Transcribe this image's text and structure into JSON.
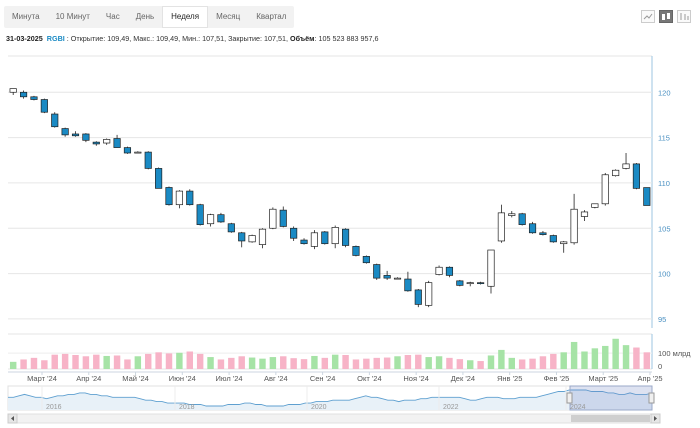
{
  "tabs": [
    {
      "label": "Минута",
      "active": false
    },
    {
      "label": "10 Минут",
      "active": false
    },
    {
      "label": "Час",
      "active": false
    },
    {
      "label": "День",
      "active": false
    },
    {
      "label": "Неделя",
      "active": true
    },
    {
      "label": "Месяц",
      "active": false
    },
    {
      "label": "Квартал",
      "active": false
    }
  ],
  "tools": [
    {
      "name": "line-chart-icon",
      "active": false
    },
    {
      "name": "candlestick-icon",
      "active": true
    },
    {
      "name": "bar-chart-icon",
      "active": false
    }
  ],
  "info": {
    "date": "31-03-2025",
    "ticker": "RGBI",
    "open_label": "Открытие:",
    "open": "109,49",
    "high_label": "Макс.:",
    "high": "109,49",
    "low_label": "Мин.:",
    "low": "107,51",
    "close_label": "Закрытие:",
    "close": "107,51",
    "volume_label": "Объём",
    "volume": "105 523 883 957,6"
  },
  "colors": {
    "up": "#ffffff",
    "down": "#1a8ac4",
    "vol_up": "#a6e3a6",
    "vol_down": "#f7b3c7",
    "navigator": "#5fa0d0"
  },
  "chart_data": {
    "type": "candlestick",
    "ylim": [
      94,
      124
    ],
    "yticks": [
      95,
      100,
      105,
      110,
      115,
      120
    ],
    "volume_tick_label": "100 млрд",
    "volume_zero_label": "0",
    "xticks": [
      "Март '24",
      "Апр '24",
      "Май '24",
      "Июн '24",
      "Июл '24",
      "Авг '24",
      "Сен '24",
      "Окт '24",
      "Ноя '24",
      "Дек '24",
      "Янв '25",
      "Фев '25",
      "Март '25",
      "Апр '25"
    ],
    "navigator_ticks": [
      "2016",
      "2018",
      "2020",
      "2022",
      "2024"
    ],
    "candles": [
      {
        "o": 120.0,
        "h": 120.4,
        "l": 119.7,
        "c": 120.4
      },
      {
        "o": 120.0,
        "h": 120.2,
        "l": 119.3,
        "c": 119.5
      },
      {
        "o": 119.5,
        "h": 119.6,
        "l": 119.1,
        "c": 119.2
      },
      {
        "o": 119.2,
        "h": 119.3,
        "l": 117.7,
        "c": 117.8
      },
      {
        "o": 117.6,
        "h": 117.8,
        "l": 116.1,
        "c": 116.2
      },
      {
        "o": 116.0,
        "h": 116.1,
        "l": 115.1,
        "c": 115.3
      },
      {
        "o": 115.4,
        "h": 115.7,
        "l": 115.1,
        "c": 115.2
      },
      {
        "o": 115.4,
        "h": 115.5,
        "l": 114.5,
        "c": 114.7
      },
      {
        "o": 114.5,
        "h": 114.6,
        "l": 114.1,
        "c": 114.3
      },
      {
        "o": 114.4,
        "h": 114.9,
        "l": 114.2,
        "c": 114.8
      },
      {
        "o": 114.9,
        "h": 115.3,
        "l": 113.9,
        "c": 113.9
      },
      {
        "o": 113.9,
        "h": 114.0,
        "l": 113.2,
        "c": 113.3
      },
      {
        "o": 113.4,
        "h": 113.5,
        "l": 113.3,
        "c": 113.4
      },
      {
        "o": 113.4,
        "h": 113.5,
        "l": 111.5,
        "c": 111.6
      },
      {
        "o": 111.6,
        "h": 111.7,
        "l": 109.4,
        "c": 109.4
      },
      {
        "o": 109.5,
        "h": 109.6,
        "l": 107.5,
        "c": 107.6
      },
      {
        "o": 107.6,
        "h": 109.2,
        "l": 107.2,
        "c": 109.1
      },
      {
        "o": 109.1,
        "h": 109.3,
        "l": 107.5,
        "c": 107.6
      },
      {
        "o": 107.6,
        "h": 107.7,
        "l": 105.3,
        "c": 105.4
      },
      {
        "o": 105.5,
        "h": 106.6,
        "l": 105.2,
        "c": 106.5
      },
      {
        "o": 106.5,
        "h": 106.7,
        "l": 105.6,
        "c": 105.7
      },
      {
        "o": 105.5,
        "h": 105.6,
        "l": 104.5,
        "c": 104.6
      },
      {
        "o": 104.5,
        "h": 104.6,
        "l": 102.9,
        "c": 103.6
      },
      {
        "o": 103.5,
        "h": 104.3,
        "l": 103.4,
        "c": 104.2
      },
      {
        "o": 103.2,
        "h": 105.0,
        "l": 102.8,
        "c": 104.9
      },
      {
        "o": 105.0,
        "h": 107.3,
        "l": 104.9,
        "c": 107.1
      },
      {
        "o": 107.0,
        "h": 107.4,
        "l": 105.1,
        "c": 105.2
      },
      {
        "o": 105.0,
        "h": 105.2,
        "l": 103.6,
        "c": 103.9
      },
      {
        "o": 103.7,
        "h": 103.9,
        "l": 103.2,
        "c": 103.3
      },
      {
        "o": 103.0,
        "h": 104.8,
        "l": 102.7,
        "c": 104.5
      },
      {
        "o": 104.6,
        "h": 104.7,
        "l": 103.2,
        "c": 103.3
      },
      {
        "o": 103.3,
        "h": 105.3,
        "l": 102.8,
        "c": 105.1
      },
      {
        "o": 104.9,
        "h": 105.0,
        "l": 102.9,
        "c": 103.1
      },
      {
        "o": 103.0,
        "h": 103.1,
        "l": 101.9,
        "c": 102.0
      },
      {
        "o": 101.9,
        "h": 102.0,
        "l": 101.1,
        "c": 101.2
      },
      {
        "o": 101.0,
        "h": 101.1,
        "l": 99.3,
        "c": 99.5
      },
      {
        "o": 99.8,
        "h": 100.3,
        "l": 99.3,
        "c": 99.5
      },
      {
        "o": 99.5,
        "h": 99.6,
        "l": 99.4,
        "c": 99.5
      },
      {
        "o": 99.4,
        "h": 100.2,
        "l": 98.0,
        "c": 98.1
      },
      {
        "o": 98.2,
        "h": 98.3,
        "l": 96.3,
        "c": 96.6
      },
      {
        "o": 96.5,
        "h": 99.2,
        "l": 96.3,
        "c": 99.0
      },
      {
        "o": 99.9,
        "h": 100.9,
        "l": 99.8,
        "c": 100.7
      },
      {
        "o": 100.7,
        "h": 100.8,
        "l": 99.6,
        "c": 99.8
      },
      {
        "o": 99.2,
        "h": 99.3,
        "l": 98.6,
        "c": 98.7
      },
      {
        "o": 98.9,
        "h": 99.1,
        "l": 98.6,
        "c": 99.0
      },
      {
        "o": 99.0,
        "h": 99.1,
        "l": 98.8,
        "c": 98.9
      },
      {
        "o": 98.6,
        "h": 102.6,
        "l": 97.8,
        "c": 102.6
      },
      {
        "o": 103.6,
        "h": 107.6,
        "l": 103.4,
        "c": 106.7
      },
      {
        "o": 106.4,
        "h": 106.9,
        "l": 106.2,
        "c": 106.6
      },
      {
        "o": 106.6,
        "h": 106.7,
        "l": 105.3,
        "c": 105.4
      },
      {
        "o": 105.5,
        "h": 105.7,
        "l": 104.4,
        "c": 104.5
      },
      {
        "o": 104.5,
        "h": 104.7,
        "l": 104.2,
        "c": 104.3
      },
      {
        "o": 104.2,
        "h": 104.3,
        "l": 103.4,
        "c": 103.5
      },
      {
        "o": 103.3,
        "h": 103.6,
        "l": 102.3,
        "c": 103.5
      },
      {
        "o": 103.4,
        "h": 108.8,
        "l": 103.2,
        "c": 107.1
      },
      {
        "o": 106.3,
        "h": 107.0,
        "l": 105.8,
        "c": 106.8
      },
      {
        "o": 107.3,
        "h": 107.6,
        "l": 107.2,
        "c": 107.7
      },
      {
        "o": 107.7,
        "h": 111.1,
        "l": 107.5,
        "c": 110.9
      },
      {
        "o": 110.8,
        "h": 111.5,
        "l": 110.7,
        "c": 111.4
      },
      {
        "o": 111.6,
        "h": 113.3,
        "l": 111.5,
        "c": 112.1
      },
      {
        "o": 112.1,
        "h": 112.2,
        "l": 109.3,
        "c": 109.4
      },
      {
        "o": 109.49,
        "h": 109.49,
        "l": 107.51,
        "c": 107.51
      }
    ],
    "volumes": [
      45,
      60,
      70,
      55,
      90,
      95,
      88,
      80,
      90,
      82,
      85,
      60,
      80,
      95,
      105,
      98,
      102,
      110,
      95,
      75,
      60,
      70,
      80,
      72,
      65,
      75,
      80,
      68,
      62,
      82,
      70,
      90,
      88,
      60,
      65,
      70,
      72,
      80,
      88,
      90,
      75,
      80,
      70,
      62,
      55,
      50,
      85,
      120,
      70,
      60,
      65,
      80,
      95,
      105,
      170,
      110,
      130,
      145,
      190,
      150,
      135,
      105
    ],
    "navigator": [
      40,
      40,
      41,
      42,
      41,
      40,
      40,
      39,
      40,
      41,
      41,
      42,
      42,
      43,
      43,
      42,
      42,
      41,
      41,
      40,
      40,
      40,
      40,
      40,
      39,
      38,
      38,
      37,
      37,
      36,
      36,
      36,
      36,
      35,
      35,
      35,
      34,
      34,
      34,
      34,
      35,
      35,
      35,
      36,
      36,
      35,
      35,
      34,
      34,
      34,
      34,
      35,
      35,
      35,
      36,
      36,
      37,
      37,
      37,
      38,
      38,
      38,
      38,
      39,
      40,
      41,
      40,
      40,
      39,
      38,
      38,
      37,
      38,
      38,
      38,
      39,
      39,
      40,
      40,
      40,
      40,
      40,
      40,
      39,
      38,
      38,
      39,
      40,
      40,
      40,
      39,
      39,
      39,
      40,
      40,
      40,
      40,
      41,
      42,
      43,
      44,
      44,
      45,
      45,
      45,
      45,
      44,
      44,
      44,
      43,
      43,
      42,
      42,
      43,
      42,
      42,
      42,
      43
    ]
  }
}
